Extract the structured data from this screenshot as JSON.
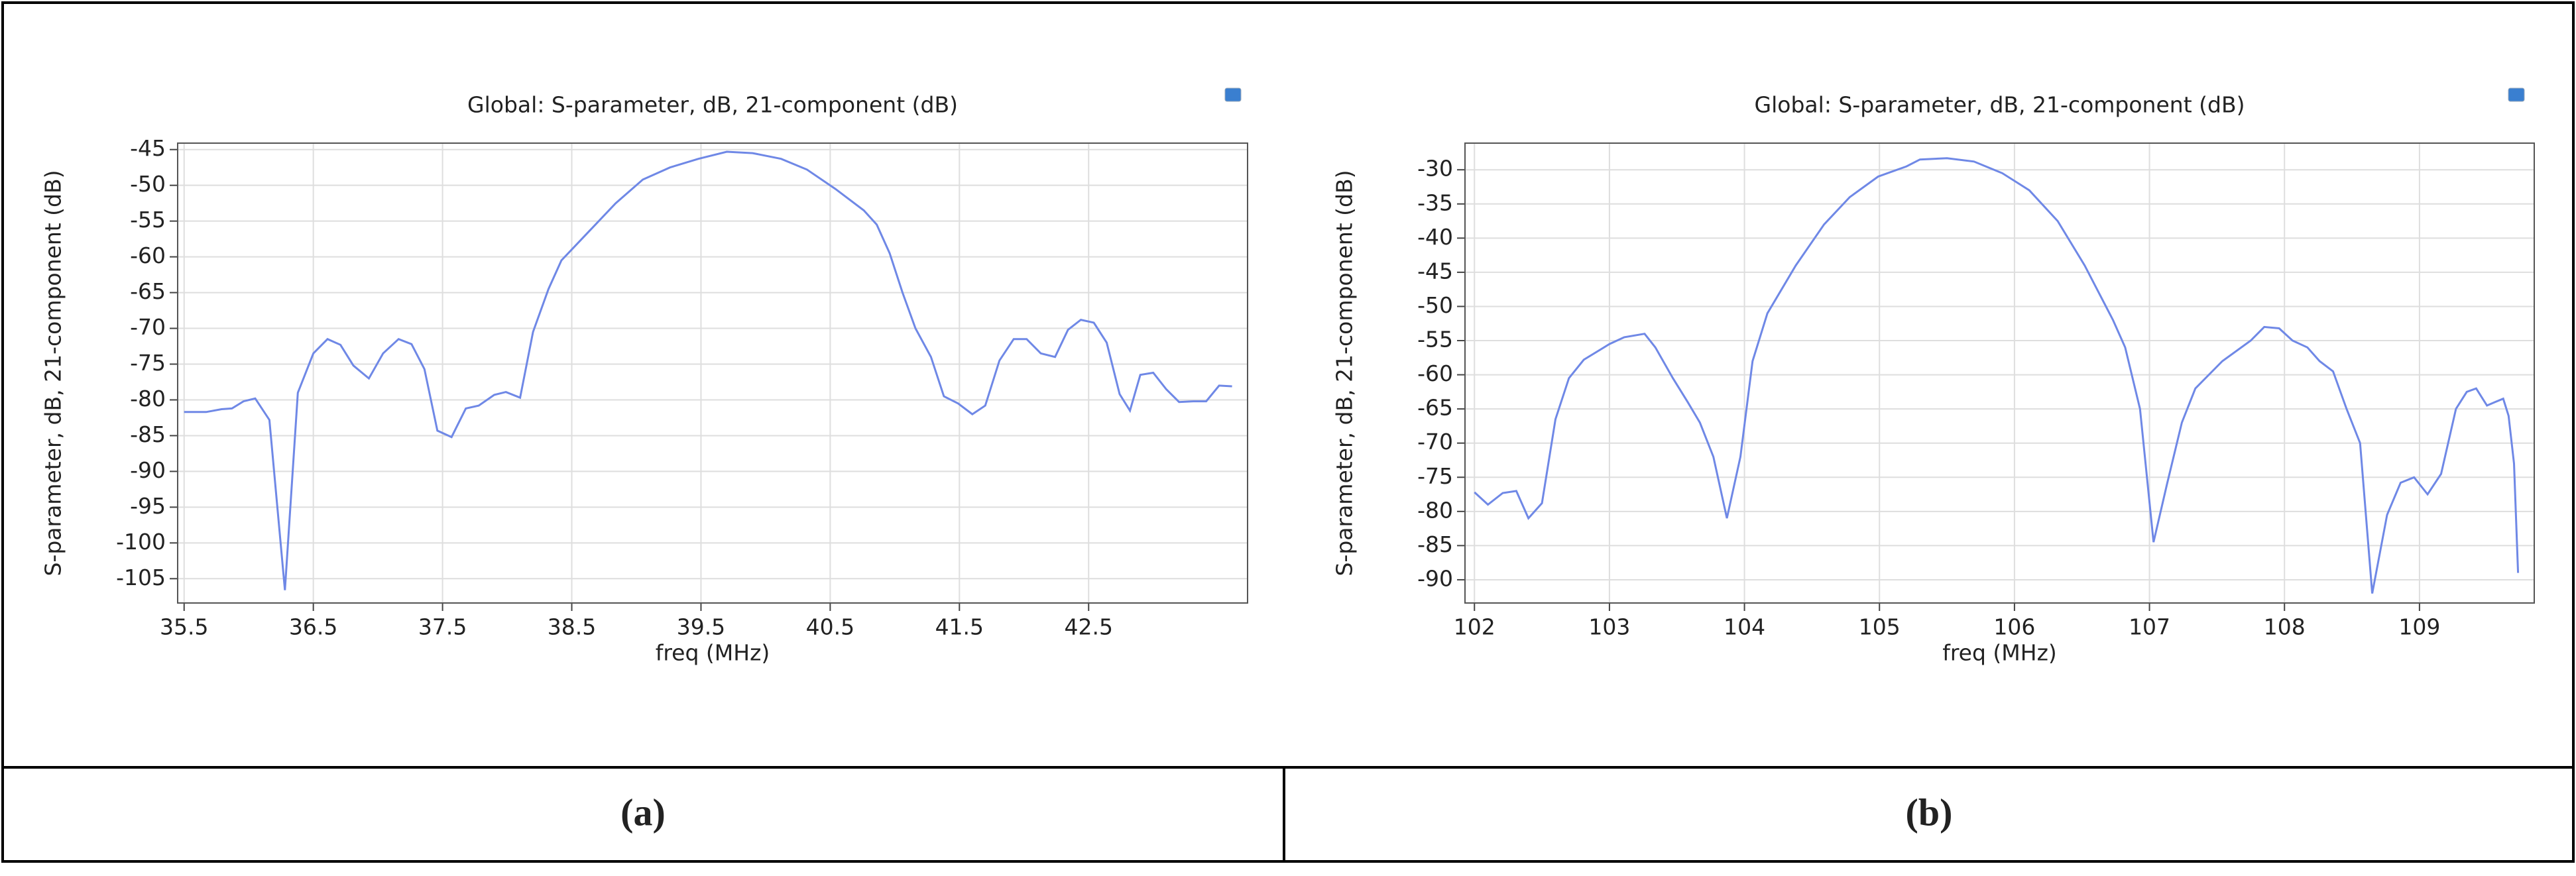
{
  "chart_data": [
    {
      "type": "line",
      "title": "Global: S-parameter, dB, 21-component (dB)",
      "xlabel": "freq (MHz)",
      "ylabel": "S-parameter, dB, 21-component (dB)",
      "caption": "(a)",
      "x": [
        35.5,
        35.67,
        35.79,
        35.87,
        35.96,
        36.05,
        36.16,
        36.28,
        36.38,
        36.5,
        36.61,
        36.71,
        36.81,
        36.93,
        37.04,
        37.16,
        37.26,
        37.36,
        37.46,
        37.57,
        37.68,
        37.78,
        37.9,
        37.99,
        38.1,
        38.2,
        38.32,
        38.42,
        38.63,
        38.84,
        39.05,
        39.26,
        39.48,
        39.7,
        39.9,
        40.12,
        40.32,
        40.54,
        40.76,
        40.86,
        40.96,
        41.06,
        41.16,
        41.28,
        41.38,
        41.49,
        41.6,
        41.7,
        41.81,
        41.92,
        42.02,
        42.13,
        42.24,
        42.34,
        42.44,
        42.54,
        42.64,
        42.74,
        42.82,
        42.9,
        43.0,
        43.1,
        43.2,
        43.31,
        43.41,
        43.51,
        43.61
      ],
      "series": [
        {
          "color": "#6f88e6",
          "values": [
            -81.7,
            -81.7,
            -81.3,
            -81.2,
            -80.2,
            -79.8,
            -82.8,
            -106.6,
            -79,
            -73.5,
            -71.5,
            -72.3,
            -75.2,
            -77,
            -73.5,
            -71.5,
            -72.2,
            -75.7,
            -84.3,
            -85.2,
            -81.2,
            -80.8,
            -79.3,
            -78.9,
            -79.7,
            -70.5,
            -64.5,
            -60.5,
            -56.5,
            -52.5,
            -49.2,
            -47.5,
            -46.3,
            -45.3,
            -45.5,
            -46.3,
            -47.8,
            -50.5,
            -53.5,
            -55.5,
            -59.5,
            -65,
            -70,
            -74,
            -79.5,
            -80.5,
            -82,
            -80.8,
            -74.5,
            -71.5,
            -71.5,
            -73.5,
            -74,
            -70.2,
            -68.8,
            -69.2,
            -72,
            -79.2,
            -81.5,
            -76.5,
            -76.2,
            -78.5,
            -80.3,
            -80.2,
            -80.2,
            -78,
            -78.1
          ]
        }
      ],
      "xlim": [
        35.45,
        43.73
      ],
      "ylim": [
        -108.4,
        -44.1
      ],
      "xticks": [
        35.5,
        36.5,
        37.5,
        38.5,
        39.5,
        40.5,
        41.5,
        42.5
      ],
      "yticks": [
        -45,
        -50,
        -55,
        -60,
        -65,
        -70,
        -75,
        -80,
        -85,
        -90,
        -95,
        -100,
        -105
      ],
      "grid": true
    },
    {
      "type": "line",
      "title": "Global: S-parameter, dB, 21-component (dB)",
      "xlabel": "freq (MHz)",
      "ylabel": "S-parameter, dB, 21-component (dB)",
      "caption": "(b)",
      "x": [
        102.0,
        102.1,
        102.21,
        102.31,
        102.4,
        102.5,
        102.6,
        102.7,
        102.81,
        103.0,
        103.11,
        103.26,
        103.34,
        103.47,
        103.58,
        103.67,
        103.77,
        103.87,
        103.97,
        104.06,
        104.17,
        104.38,
        104.59,
        104.78,
        104.99,
        105.2,
        105.3,
        105.5,
        105.7,
        105.91,
        106.11,
        106.32,
        106.52,
        106.73,
        106.82,
        106.93,
        107.03,
        107.13,
        107.24,
        107.34,
        107.54,
        107.75,
        107.85,
        107.96,
        108.06,
        108.17,
        108.26,
        108.36,
        108.46,
        108.56,
        108.65,
        108.76,
        108.86,
        108.96,
        109.06,
        109.16,
        109.27,
        109.35,
        109.42,
        109.5,
        109.56,
        109.62,
        109.66,
        109.7,
        109.73
      ],
      "series": [
        {
          "color": "#6f88e6",
          "values": [
            -77.2,
            -79,
            -77.3,
            -77,
            -81,
            -78.8,
            -66.5,
            -60.5,
            -57.8,
            -55.5,
            -54.5,
            -54,
            -56,
            -60.5,
            -64,
            -67,
            -72,
            -81,
            -72,
            -58,
            -51,
            -44,
            -38,
            -34,
            -31,
            -29.5,
            -28.5,
            -28.3,
            -28.8,
            -30.5,
            -33,
            -37.5,
            -44,
            -52,
            -56,
            -65,
            -84.5,
            -76,
            -67,
            -62,
            -58,
            -55,
            -53,
            -53.2,
            -55,
            -56,
            -58,
            -59.5,
            -65,
            -70,
            -92,
            -80.5,
            -75.8,
            -75,
            -77.5,
            -74.5,
            -65,
            -62.5,
            -62,
            -64.5,
            -64,
            -63.5,
            -66,
            -73,
            -89
          ]
        }
      ],
      "xlim": [
        101.93,
        109.85
      ],
      "ylim": [
        -93.4,
        -26.1
      ],
      "xticks": [
        102,
        103,
        104,
        105,
        106,
        107,
        108,
        109
      ],
      "yticks": [
        -30,
        -35,
        -40,
        -45,
        -50,
        -55,
        -60,
        -65,
        -70,
        -75,
        -80,
        -85,
        -90
      ],
      "grid": true
    }
  ]
}
